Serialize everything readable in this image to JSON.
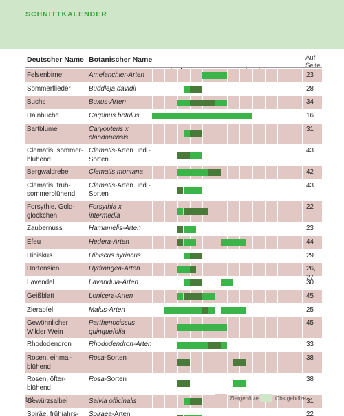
{
  "header": {
    "title": "SCHNITTKALENDER"
  },
  "columns": {
    "german": "Deutscher Name",
    "botanical": "Botanischer Name",
    "page": "Auf Seite"
  },
  "months": [
    "Jan.",
    "Febr.",
    "März",
    "Apr.",
    "Mai",
    "Juni",
    "Juli",
    "Aug.",
    "Sept.",
    "Okt.",
    "Nov.",
    "Dez."
  ],
  "legend": {
    "zier": {
      "label": "Ziergehölze",
      "color": "#e2c8c4"
    },
    "obst": {
      "label": "Obstgehölze",
      "color": "#cfe6c8"
    }
  },
  "colors": {
    "light_bar": "#3bb54a",
    "dark_bar": "#4a7a3a",
    "shaded_row": "#e2c8c4",
    "header_band": "#cfe6c8"
  },
  "rows": [
    {
      "de": "Felsenbirne",
      "bot": "Amelanchier-Arten",
      "bot_up": "",
      "page": "23",
      "shaded": true,
      "lines": 1,
      "bars": [
        {
          "s": 4.0,
          "e": 6.0,
          "t": "light"
        }
      ]
    },
    {
      "de": "Sommerflieder",
      "bot": "Buddleja davidii",
      "bot_up": "",
      "page": "28",
      "shaded": false,
      "lines": 1,
      "bars": [
        {
          "s": 2.5,
          "e": 3.0,
          "t": "light"
        },
        {
          "s": 3.0,
          "e": 4.0,
          "t": "dark"
        }
      ]
    },
    {
      "de": "Buchs",
      "bot": "Buxus-Arten",
      "bot_up": "",
      "page": "34",
      "shaded": true,
      "lines": 1,
      "bars": [
        {
          "s": 2.0,
          "e": 3.0,
          "t": "light"
        },
        {
          "s": 3.0,
          "e": 5.0,
          "t": "dark"
        },
        {
          "s": 5.0,
          "e": 6.0,
          "t": "light"
        }
      ]
    },
    {
      "de": "Hainbuche",
      "bot": "Carpinus betulus",
      "bot_up": "",
      "page": "16",
      "shaded": false,
      "lines": 1,
      "bars": [
        {
          "s": 0.0,
          "e": 8.0,
          "t": "light"
        }
      ]
    },
    {
      "de": "Bartblume",
      "bot": "Caryopteris x clandonensis",
      "bot_up": "",
      "page": "31",
      "shaded": true,
      "lines": 2,
      "bars": [
        {
          "s": 2.5,
          "e": 3.0,
          "t": "light"
        },
        {
          "s": 3.0,
          "e": 4.0,
          "t": "dark"
        }
      ]
    },
    {
      "de": "Clematis, sommer-blühend",
      "bot": "Clematis",
      "bot_up": "-Arten und -Sorten",
      "page": "43",
      "shaded": false,
      "lines": 2,
      "bars": [
        {
          "s": 2.0,
          "e": 3.0,
          "t": "dark"
        },
        {
          "s": 3.0,
          "e": 4.0,
          "t": "light"
        }
      ]
    },
    {
      "de": "Bergwaldrebe",
      "bot": "Clematis montana",
      "bot_up": "",
      "page": "42",
      "shaded": true,
      "lines": 1,
      "bars": [
        {
          "s": 2.0,
          "e": 4.5,
          "t": "light"
        },
        {
          "s": 4.5,
          "e": 5.5,
          "t": "dark"
        }
      ]
    },
    {
      "de": "Clematis, früh-sommerblühend",
      "bot": "Clematis",
      "bot_up": "-Arten und -Sorten",
      "page": "43",
      "shaded": false,
      "lines": 2,
      "bars": [
        {
          "s": 2.0,
          "e": 2.5,
          "t": "dark"
        },
        {
          "s": 2.5,
          "e": 4.0,
          "t": "light"
        }
      ]
    },
    {
      "de": "Forsythie, Gold-glöckchen",
      "bot": "Forsythia x intermedia",
      "bot_up": "",
      "page": "22",
      "shaded": true,
      "lines": 2,
      "bars": [
        {
          "s": 2.0,
          "e": 2.5,
          "t": "light"
        },
        {
          "s": 2.5,
          "e": 4.5,
          "t": "dark"
        }
      ]
    },
    {
      "de": "Zaubernuss",
      "bot": "Hamamelis-Arten",
      "bot_up": "",
      "page": "23",
      "shaded": false,
      "lines": 1,
      "bars": [
        {
          "s": 2.0,
          "e": 2.5,
          "t": "dark"
        },
        {
          "s": 2.5,
          "e": 3.5,
          "t": "light"
        }
      ]
    },
    {
      "de": "Efeu",
      "bot": "Hedera-Arten",
      "bot_up": "",
      "page": "44",
      "shaded": true,
      "lines": 1,
      "bars": [
        {
          "s": 2.0,
          "e": 2.5,
          "t": "dark"
        },
        {
          "s": 2.5,
          "e": 3.5,
          "t": "light"
        },
        {
          "s": 5.5,
          "e": 7.5,
          "t": "light"
        }
      ]
    },
    {
      "de": "Hibiskus",
      "bot": "Hibiscus syriacus",
      "bot_up": "",
      "page": "29",
      "shaded": false,
      "lines": 1,
      "bars": [
        {
          "s": 2.5,
          "e": 3.0,
          "t": "light"
        },
        {
          "s": 3.0,
          "e": 4.0,
          "t": "dark"
        }
      ]
    },
    {
      "de": "Hortensien",
      "bot": "Hydrangea-Arten",
      "bot_up": "",
      "page": "26, 27",
      "shaded": true,
      "lines": 1,
      "bars": [
        {
          "s": 2.0,
          "e": 3.0,
          "t": "light"
        },
        {
          "s": 3.0,
          "e": 3.5,
          "t": "dark"
        }
      ]
    },
    {
      "de": "Lavendel",
      "bot": "Lavandula-Arten",
      "bot_up": "",
      "page": "30",
      "shaded": false,
      "lines": 1,
      "bars": [
        {
          "s": 2.5,
          "e": 3.0,
          "t": "light"
        },
        {
          "s": 3.0,
          "e": 4.0,
          "t": "dark"
        },
        {
          "s": 5.5,
          "e": 6.5,
          "t": "light"
        }
      ]
    },
    {
      "de": "Geißblatt",
      "bot": "Lonicera-Arten",
      "bot_up": "",
      "page": "45",
      "shaded": true,
      "lines": 1,
      "bars": [
        {
          "s": 2.0,
          "e": 2.5,
          "t": "light"
        },
        {
          "s": 2.5,
          "e": 4.0,
          "t": "dark"
        },
        {
          "s": 4.0,
          "e": 5.0,
          "t": "light"
        }
      ]
    },
    {
      "de": "Zierapfel",
      "bot": "Malus-Arten",
      "bot_up": "",
      "page": "25",
      "shaded": false,
      "lines": 1,
      "bars": [
        {
          "s": 1.0,
          "e": 4.0,
          "t": "light"
        },
        {
          "s": 4.0,
          "e": 4.5,
          "t": "dark"
        },
        {
          "s": 4.5,
          "e": 5.0,
          "t": "light"
        },
        {
          "s": 5.5,
          "e": 7.5,
          "t": "light"
        }
      ]
    },
    {
      "de": "Gewöhnlicher Wilder Wein",
      "bot": "Parthenocissus quinquefolia",
      "bot_up": "",
      "page": "45",
      "shaded": true,
      "lines": 2,
      "bars": [
        {
          "s": 2.0,
          "e": 6.0,
          "t": "light"
        }
      ]
    },
    {
      "de": "Rhododendron",
      "bot": "Rhododendron-Arten",
      "bot_up": "",
      "page": "33",
      "shaded": false,
      "lines": 1,
      "bars": [
        {
          "s": 2.0,
          "e": 4.5,
          "t": "light"
        },
        {
          "s": 4.5,
          "e": 5.5,
          "t": "dark"
        },
        {
          "s": 5.5,
          "e": 6.0,
          "t": "light"
        }
      ]
    },
    {
      "de": "Rosen, einmal-blühend",
      "bot": "Rosa",
      "bot_up": "-Sorten",
      "page": "38",
      "shaded": true,
      "lines": 2,
      "bars": [
        {
          "s": 2.0,
          "e": 3.0,
          "t": "dark"
        },
        {
          "s": 6.5,
          "e": 7.5,
          "t": "dark"
        }
      ]
    },
    {
      "de": "Rosen, öfter-blühend",
      "bot": "Rosa",
      "bot_up": "-Sorten",
      "page": "38",
      "shaded": false,
      "lines": 2,
      "bars": [
        {
          "s": 2.0,
          "e": 3.0,
          "t": "dark"
        },
        {
          "s": 6.5,
          "e": 7.5,
          "t": "light"
        }
      ]
    },
    {
      "de": "Gewürzsalbei",
      "bot": "Salvia officinalis",
      "bot_up": "",
      "page": "31",
      "shaded": true,
      "lines": 1,
      "bars": [
        {
          "s": 2.5,
          "e": 3.0,
          "t": "light"
        },
        {
          "s": 3.0,
          "e": 4.0,
          "t": "dark"
        }
      ]
    },
    {
      "de": "Spiräe, frühjahrs-blühend",
      "bot": "Spiraea",
      "bot_up": "-Arten",
      "page": "22",
      "shaded": false,
      "lines": 2,
      "bars": [
        {
          "s": 2.0,
          "e": 2.5,
          "t": "dark"
        },
        {
          "s": 2.5,
          "e": 4.0,
          "t": "light"
        }
      ]
    }
  ],
  "footer": {
    "page_number": "58"
  }
}
